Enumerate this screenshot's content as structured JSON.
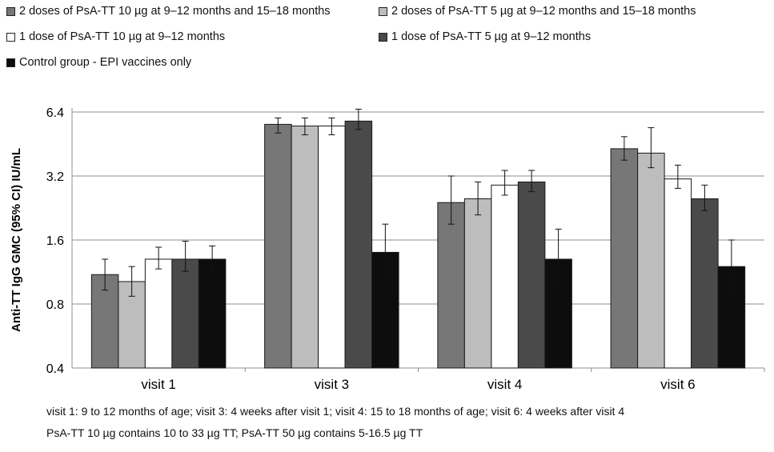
{
  "chart_data": {
    "type": "bar",
    "title": "",
    "xlabel": "",
    "ylabel": "Anti-TT IgG GMC (95% CI) IU/mL",
    "y_scale": "log2",
    "ylim": [
      0.4,
      6.4
    ],
    "yticks": [
      "0.4",
      "0.8",
      "1.6",
      "3.2",
      "6.4"
    ],
    "ytick_values": [
      0.4,
      0.8,
      1.6,
      3.2,
      6.4
    ],
    "grid": true,
    "legend_position": "top",
    "categories": [
      "visit 1",
      "visit 3",
      "visit 4",
      "visit 6"
    ],
    "series": [
      {
        "name": "2 doses of PsA-TT 10 µg at 9–12 months and 15–18 months",
        "color": "#777777",
        "values": [
          1.1,
          5.6,
          2.4,
          4.3
        ],
        "ci_low": [
          0.93,
          5.1,
          1.9,
          3.8
        ],
        "ci_high": [
          1.3,
          6.0,
          3.2,
          4.9
        ]
      },
      {
        "name": "2 doses of PsA-TT 5 µg at 9–12 months and 15–18 months",
        "color": "#bdbdbd",
        "values": [
          1.02,
          5.5,
          2.5,
          4.1
        ],
        "ci_low": [
          0.87,
          5.0,
          2.1,
          3.5
        ],
        "ci_high": [
          1.2,
          6.0,
          3.0,
          5.4
        ]
      },
      {
        "name": "1 dose of PsA-TT 10 µg at 9–12 months",
        "color": "#ffffff",
        "values": [
          1.3,
          5.5,
          2.9,
          3.1
        ],
        "ci_low": [
          1.17,
          5.0,
          2.6,
          2.8
        ],
        "ci_high": [
          1.48,
          6.0,
          3.4,
          3.6
        ]
      },
      {
        "name": "1 dose of PsA-TT 5 µg at 9–12 months",
        "color": "#4a4a4a",
        "values": [
          1.3,
          5.8,
          3.0,
          2.5
        ],
        "ci_low": [
          1.14,
          5.3,
          2.7,
          2.2
        ],
        "ci_high": [
          1.58,
          6.6,
          3.4,
          2.9
        ]
      },
      {
        "name": "Control group - EPI vaccines only",
        "color": "#0d0d0d",
        "values": [
          1.3,
          1.4,
          1.3,
          1.2
        ],
        "ci_low": [
          1.14,
          1.08,
          0.98,
          0.93
        ],
        "ci_high": [
          1.5,
          1.9,
          1.8,
          1.6
        ]
      }
    ],
    "annotations": [
      "visit 1: 9 to 12 months of  age; visit 3: 4 weeks after visit 1; visit 4: 15 to 18 months of age; visit 6: 4 weeks after visit 4",
      "PsA-TT 10 µg contains 10 to 33 µg TT; PsA-TT 50 µg contains  5-16.5 µg TT"
    ]
  }
}
